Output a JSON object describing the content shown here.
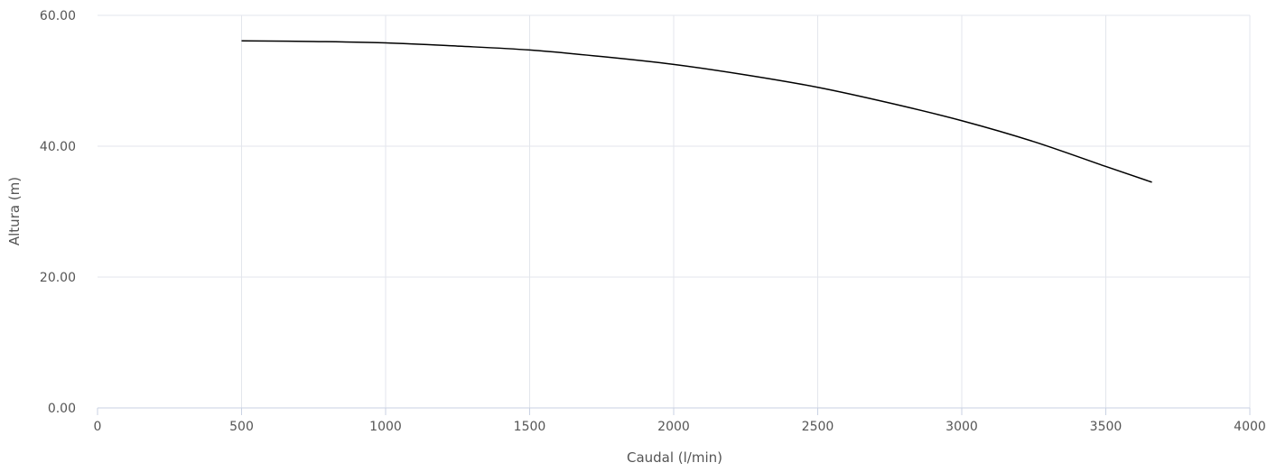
{
  "chart_data": {
    "type": "line",
    "xlabel": "Caudal (l/min)",
    "ylabel": "Altura (m)",
    "xlim": [
      0,
      4000
    ],
    "ylim": [
      0,
      60
    ],
    "x_ticks": [
      0,
      500,
      1000,
      1500,
      2000,
      2500,
      3000,
      3500,
      4000
    ],
    "y_ticks": [
      0,
      20,
      40,
      60
    ],
    "x_tick_labels": [
      "0",
      "500",
      "1000",
      "1500",
      "2000",
      "2500",
      "3000",
      "3500",
      "4000"
    ],
    "y_tick_labels": [
      "0.00",
      "20.00",
      "40.00",
      "60.00"
    ],
    "grid": true,
    "line_color": "#000000",
    "grid_color": "#e3e6ec",
    "series": [
      {
        "x": [
          500,
          750,
          1000,
          1250,
          1500,
          1750,
          2000,
          2250,
          2500,
          2750,
          3000,
          3250,
          3500,
          3660
        ],
        "y": [
          56.1,
          56.0,
          55.8,
          55.3,
          54.7,
          53.7,
          52.5,
          50.9,
          49.0,
          46.6,
          43.9,
          40.7,
          36.9,
          34.5
        ]
      }
    ]
  }
}
